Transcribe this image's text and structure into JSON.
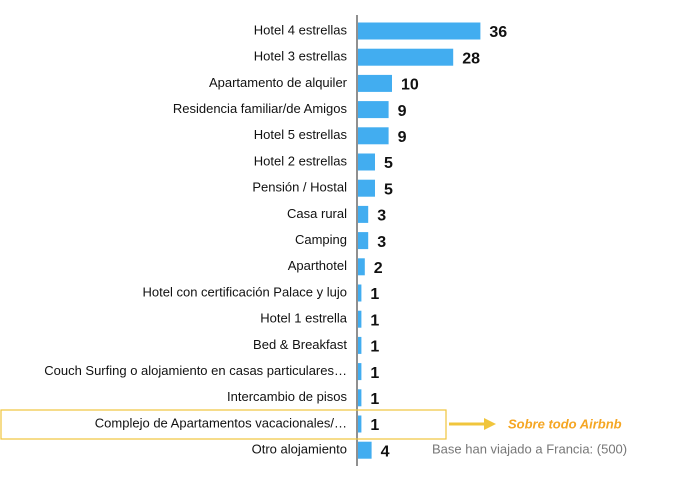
{
  "chart_data": {
    "type": "barh",
    "categories": [
      "Hotel 4 estrellas",
      "Hotel 3 estrellas",
      "Apartamento de alquiler",
      "Residencia familiar/de Amigos",
      "Hotel 5 estrellas",
      "Hotel 2 estrellas",
      "Pensión / Hostal",
      "Casa rural",
      "Camping",
      "Aparthotel",
      "Hotel con certificación Palace y lujo",
      "Hotel 1 estrella",
      "Bed & Breakfast",
      "Couch Surfing o alojamiento en casas particulares…",
      "Intercambio de pisos",
      "Complejo de Apartamentos vacacionales/…",
      "Otro alojamiento"
    ],
    "values": [
      36,
      28,
      10,
      9,
      9,
      5,
      5,
      3,
      3,
      2,
      1,
      1,
      1,
      1,
      1,
      1,
      4
    ],
    "color": "#42adf0",
    "xlim": [
      0,
      40
    ],
    "highlight": 15,
    "highlight_color": "#f0c53c",
    "annotation": "Sobre todo Airbnb",
    "annotation_color": "#f5a623",
    "note": "Base han viajado a Francia: (500)"
  }
}
